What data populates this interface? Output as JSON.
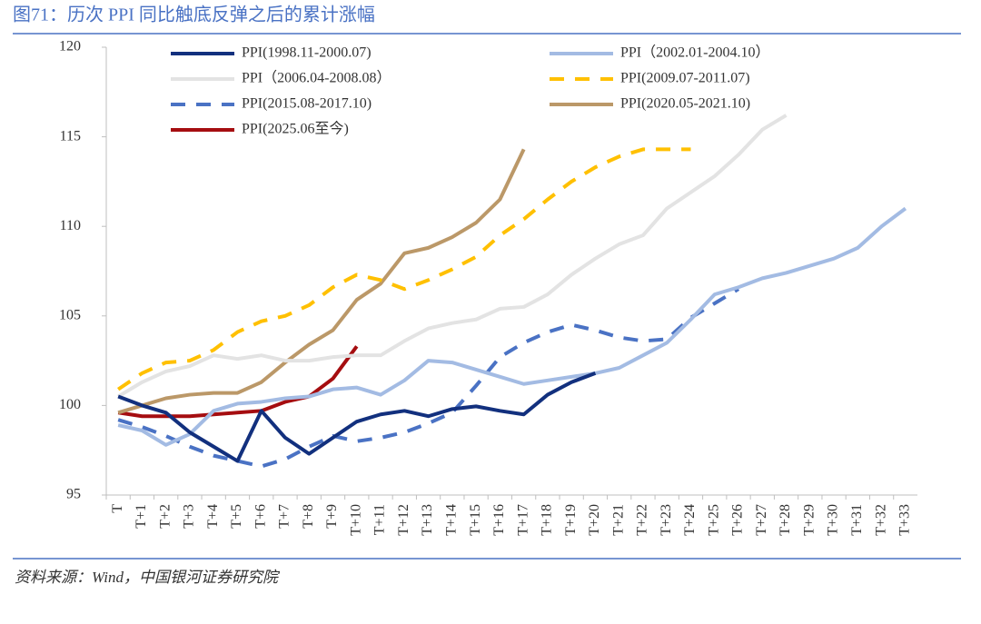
{
  "chart_data": {
    "type": "line",
    "title": "图71：历次 PPI 同比触底反弹之后的累计涨幅",
    "source": "资料来源：Wind，中国银河证券研究院",
    "categories": [
      "T",
      "T+1",
      "T+2",
      "T+3",
      "T+4",
      "T+5",
      "T+6",
      "T+7",
      "T+8",
      "T+9",
      "T+10",
      "T+11",
      "T+12",
      "T+13",
      "T+14",
      "T+15",
      "T+16",
      "T+17",
      "T+18",
      "T+19",
      "T+20",
      "T+21",
      "T+22",
      "T+23",
      "T+24",
      "T+25",
      "T+26",
      "T+27",
      "T+28",
      "T+29",
      "T+30",
      "T+31",
      "T+32",
      "T+33"
    ],
    "ylim": [
      95,
      120
    ],
    "yticks": [
      95,
      100,
      105,
      110,
      115,
      120
    ],
    "legend_position": "top",
    "series": [
      {
        "name": "PPI(1998.11-2000.07)",
        "color": "#12307e",
        "dashed": false,
        "values": [
          100.5,
          100.0,
          99.6,
          98.5,
          97.7,
          96.9,
          99.7,
          98.2,
          97.3,
          98.2,
          99.1,
          99.5,
          99.7,
          99.4,
          99.8,
          99.95,
          99.7,
          99.5,
          100.6,
          101.3,
          101.8,
          null,
          null,
          null,
          null,
          null,
          null,
          null,
          null,
          null,
          null,
          null,
          null,
          null
        ]
      },
      {
        "name": "PPI（2002.01-2004.10）",
        "color": "#a3bbe3",
        "dashed": false,
        "values": [
          98.9,
          98.6,
          97.8,
          98.4,
          99.7,
          100.1,
          100.2,
          100.4,
          100.5,
          100.9,
          101.0,
          100.6,
          101.4,
          102.5,
          102.4,
          102.0,
          101.6,
          101.2,
          101.4,
          101.6,
          101.8,
          102.1,
          102.8,
          103.5,
          104.8,
          106.2,
          106.6,
          107.1,
          107.4,
          107.8,
          108.2,
          108.8,
          110.0,
          111.0
        ]
      },
      {
        "name": "PPI（2006.04-2008.08）",
        "color": "#e3e3e3",
        "dashed": false,
        "values": [
          100.5,
          101.3,
          101.9,
          102.2,
          102.8,
          102.6,
          102.8,
          102.5,
          102.5,
          102.7,
          102.8,
          102.8,
          103.6,
          104.3,
          104.6,
          104.8,
          105.4,
          105.5,
          106.2,
          107.3,
          108.2,
          109.0,
          109.5,
          111.0,
          111.9,
          112.8,
          114.0,
          115.4,
          116.2,
          null,
          null,
          null,
          null,
          null
        ]
      },
      {
        "name": "PPI(2009.07-2011.07)",
        "color": "#ffc000",
        "dashed": true,
        "values": [
          100.9,
          101.8,
          102.4,
          102.5,
          103.1,
          104.1,
          104.7,
          105.0,
          105.6,
          106.6,
          107.3,
          107.0,
          106.5,
          107.0,
          107.6,
          108.3,
          109.5,
          110.4,
          111.5,
          112.5,
          113.3,
          113.9,
          114.3,
          114.3,
          114.3,
          null,
          null,
          null,
          null,
          null,
          null,
          null,
          null,
          null
        ]
      },
      {
        "name": "PPI(2015.08-2017.10)",
        "color": "#4a72c4",
        "dashed": true,
        "values": [
          99.2,
          98.8,
          98.3,
          97.7,
          97.2,
          96.9,
          96.6,
          97.0,
          97.7,
          98.3,
          98.0,
          98.2,
          98.5,
          99.0,
          99.6,
          101.1,
          102.7,
          103.5,
          104.1,
          104.5,
          104.2,
          103.8,
          103.6,
          103.7,
          104.9,
          105.7,
          106.5,
          null,
          null,
          null,
          null,
          null,
          null,
          null
        ]
      },
      {
        "name": "PPI(2020.05-2021.10)",
        "color": "#bb9868",
        "dashed": false,
        "values": [
          99.6,
          100.0,
          100.4,
          100.6,
          100.7,
          100.7,
          101.3,
          102.4,
          103.4,
          104.2,
          105.9,
          106.8,
          108.5,
          108.8,
          109.4,
          110.2,
          111.5,
          114.3,
          null,
          null,
          null,
          null,
          null,
          null,
          null,
          null,
          null,
          null,
          null,
          null,
          null,
          null,
          null,
          null
        ]
      },
      {
        "name": "PPI(2025.06至今)",
        "color": "#a50d10",
        "dashed": false,
        "values": [
          99.6,
          99.4,
          99.4,
          99.4,
          99.5,
          99.6,
          99.7,
          100.2,
          100.5,
          101.5,
          103.3,
          null,
          null,
          null,
          null,
          null,
          null,
          null,
          null,
          null,
          null,
          null,
          null,
          null,
          null,
          null,
          null,
          null,
          null,
          null,
          null,
          null,
          null,
          null
        ]
      }
    ]
  }
}
